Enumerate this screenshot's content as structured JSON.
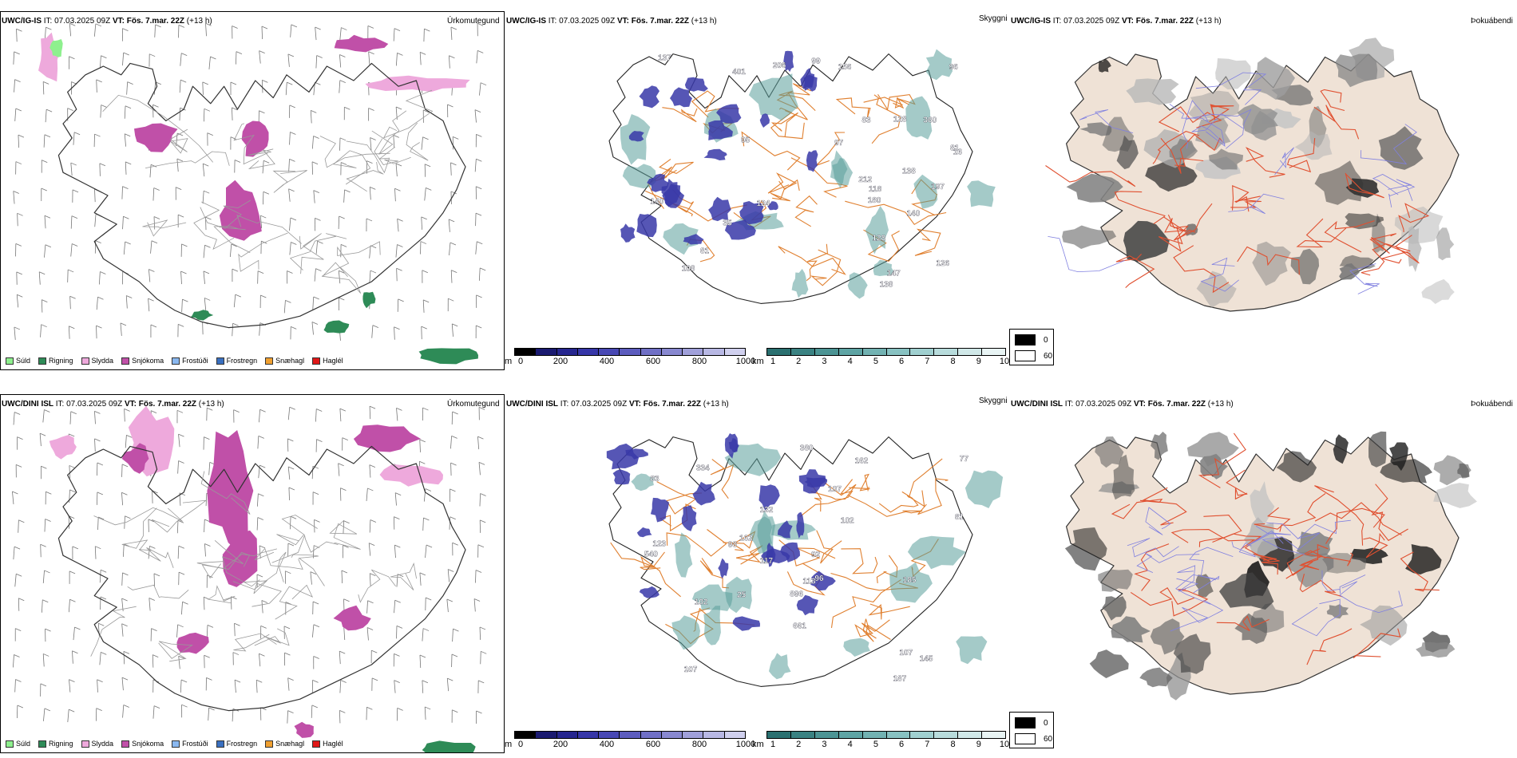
{
  "rows": [
    {
      "model": "UWC/IG-IS",
      "it_label": "IT:",
      "it_value": "07.03.2025 09Z",
      "vt_label": "VT:",
      "vt_value": "Fös. 7.mar. 22Z",
      "lead": "(+13 h)",
      "precip_title": "Úrkomutegund",
      "cloud_title": "Skyggni",
      "fog_title": "Þokuábendi",
      "cloud_labels": [
        "128",
        "197",
        "99",
        "81",
        "95",
        "83",
        "108",
        "81",
        "124",
        "180",
        "360",
        "16",
        "126",
        "156",
        "138",
        "137",
        "138",
        "140",
        "97",
        "147",
        "35",
        "128",
        "140",
        "118",
        "96",
        "401",
        "212",
        "206"
      ]
    },
    {
      "model": "UWC/DINI ISL",
      "it_label": "IT:",
      "it_value": "07.03.2025 09Z",
      "vt_label": "VT:",
      "vt_value": "Fös. 7.mar. 22Z",
      "lead": "(+13 h)",
      "precip_title": "Úrkomutegund",
      "cloud_title": "Skyggni",
      "fog_title": "Þokuábendi",
      "cloud_labels": [
        "102",
        "81",
        "162",
        "123",
        "107",
        "117",
        "107",
        "102",
        "96",
        "185",
        "187",
        "896",
        "25",
        "107",
        "380",
        "540",
        "132",
        "77",
        "162",
        "113",
        "334",
        "661",
        "98",
        "92",
        "145",
        "83"
      ]
    }
  ],
  "ptype_legend": [
    {
      "label": "Súld",
      "color": "#8ef08e"
    },
    {
      "label": "Rigning",
      "color": "#2e8b57"
    },
    {
      "label": "Slydda",
      "color": "#eea9dc"
    },
    {
      "label": "Snjókoma",
      "color": "#c050a8"
    },
    {
      "label": "Frostúði",
      "color": "#8ab8f0"
    },
    {
      "label": "Frostregn",
      "color": "#3a70c0"
    },
    {
      "label": "Snæhagl",
      "color": "#f0a030"
    },
    {
      "label": "Haglél",
      "color": "#e01818"
    }
  ],
  "height_bar": {
    "unit": "m",
    "ticks": [
      "0",
      "200",
      "400",
      "600",
      "800",
      "1000"
    ],
    "colors": [
      "#000000",
      "#1a1a70",
      "#26268f",
      "#3636a8",
      "#4848b4",
      "#5c5cbe",
      "#7070c6",
      "#8888d0",
      "#a0a0da",
      "#b8b8e4",
      "#d0d0ee"
    ]
  },
  "vis_bar": {
    "unit": "km",
    "ticks": [
      "1",
      "2",
      "3",
      "4",
      "5",
      "6",
      "7",
      "8",
      "9",
      "10"
    ],
    "colors": [
      "#2a7070",
      "#3a8282",
      "#4c9494",
      "#5ea4a4",
      "#72b2b2",
      "#88c2c2",
      "#a0d0d0",
      "#b8dcdc",
      "#d0e8e8",
      "#e8f4f4"
    ]
  },
  "fog_legend": {
    "high_label": "0",
    "low_label": "60",
    "high_color": "#000000",
    "low_color": "#ffffff"
  },
  "colors": {
    "coast": "#333333",
    "road": "#e08030",
    "cloud_teal": "#5a9e9a",
    "cloud_blue": "#3838a8",
    "land_fog": "#efe2d6",
    "fog_road": "#e05030",
    "fog_river": "#8080e0"
  }
}
